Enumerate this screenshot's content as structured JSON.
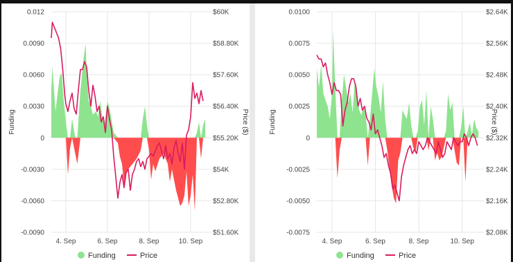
{
  "chart_data": [
    {
      "type": "area",
      "title": "",
      "xlabel": "",
      "ylabel": "Funding",
      "y2label": "Price ($)",
      "x_ticks": [
        "4. Sep",
        "6. Sep",
        "8. Sep",
        "10. Sep"
      ],
      "x_tick_days": [
        4,
        6,
        8,
        10
      ],
      "xlim": [
        3.3,
        11.0
      ],
      "ylim": [
        -0.009,
        0.012
      ],
      "y_ticks": [
        -0.009,
        -0.006,
        -0.003,
        0,
        0.003,
        0.006,
        0.009,
        0.012
      ],
      "y_tick_labels": [
        "-0.0090",
        "-0.0060",
        "-0.0030",
        "0",
        "0.0030",
        "0.0060",
        "0.0090",
        "0.012"
      ],
      "y2lim": [
        51.6,
        60
      ],
      "y2_ticks": [
        51.6,
        52.8,
        54,
        55.2,
        56.4,
        57.6,
        58.8,
        60
      ],
      "y2_tick_labels": [
        "$51.60K",
        "$52.80K",
        "$54K",
        "$55.20K",
        "$56.40K",
        "$57.60K",
        "$58.80K",
        "$60K"
      ],
      "grid": true,
      "legend": "bottom-center",
      "series": [
        {
          "name": "Funding",
          "axis": "left",
          "x": [
            3.3,
            3.35,
            3.5,
            3.7,
            3.8,
            3.9,
            4.0,
            4.1,
            4.2,
            4.3,
            4.45,
            4.55,
            4.7,
            4.8,
            4.85,
            4.95,
            5.0,
            5.1,
            5.2,
            5.3,
            5.45,
            5.55,
            5.65,
            5.75,
            5.85,
            6.0,
            6.1,
            6.3,
            6.5,
            6.6,
            6.7,
            6.8,
            6.9,
            7.0,
            7.2,
            7.4,
            7.6,
            7.7,
            7.8,
            7.9,
            8.0,
            8.1,
            8.2,
            8.3,
            8.5,
            8.7,
            8.9,
            9.0,
            9.1,
            9.3,
            9.5,
            9.6,
            9.7,
            9.8,
            9.9,
            10.0,
            10.1,
            10.2,
            10.3,
            10.4,
            10.5,
            10.6,
            10.7
          ],
          "y": [
            0.0045,
            0.0068,
            0.0025,
            0.0058,
            0.0062,
            0.0035,
            0.0015,
            -0.0035,
            -0.001,
            0.0018,
            -0.0015,
            -0.0025,
            0.0045,
            0.0065,
            0.0075,
            0.009,
            0.0062,
            0.0035,
            0.003,
            0.0022,
            0.0025,
            0.002,
            0.0035,
            0.002,
            0.0012,
            0.0035,
            0.0028,
            0.0005,
            -0.0005,
            -0.0018,
            -0.0025,
            -0.0045,
            -0.0035,
            -0.003,
            -0.0025,
            -0.002,
            -0.0012,
            0.0018,
            0.003,
            0.0012,
            -0.0012,
            -0.004,
            -0.0025,
            -0.0032,
            -0.002,
            -0.0015,
            -0.0025,
            -0.0042,
            -0.003,
            -0.005,
            -0.0065,
            -0.0062,
            -0.0055,
            -0.0032,
            -0.0065,
            -0.0055,
            -0.0035,
            -0.007,
            0.0005,
            0.0015,
            -0.002,
            0.0012,
            0.0018
          ]
        },
        {
          "name": "Price",
          "axis": "right",
          "x": [
            3.3,
            3.35,
            3.45,
            3.55,
            3.65,
            3.75,
            3.85,
            3.95,
            4.0,
            4.1,
            4.2,
            4.3,
            4.4,
            4.5,
            4.6,
            4.7,
            4.8,
            4.9,
            5.0,
            5.1,
            5.2,
            5.3,
            5.4,
            5.5,
            5.6,
            5.7,
            5.8,
            5.9,
            6.0,
            6.1,
            6.2,
            6.3,
            6.4,
            6.5,
            6.6,
            6.7,
            6.8,
            6.9,
            7.0,
            7.1,
            7.2,
            7.3,
            7.4,
            7.5,
            7.6,
            7.7,
            7.8,
            7.9,
            8.0,
            8.1,
            8.2,
            8.3,
            8.4,
            8.5,
            8.6,
            8.7,
            8.8,
            8.9,
            9.0,
            9.1,
            9.2,
            9.3,
            9.4,
            9.5,
            9.6,
            9.7,
            9.8,
            9.9,
            10.0,
            10.1,
            10.2,
            10.3,
            10.4,
            10.5,
            10.6
          ],
          "y": [
            59.0,
            59.6,
            59.4,
            59.2,
            59.0,
            58.6,
            57.8,
            56.8,
            56.5,
            56.2,
            56.6,
            56.9,
            56.3,
            56.1,
            57.0,
            57.8,
            57.8,
            58.1,
            57.9,
            57.0,
            56.4,
            57.2,
            56.8,
            56.2,
            56.4,
            55.8,
            56.0,
            55.4,
            56.4,
            55.9,
            55.5,
            54.5,
            53.7,
            52.9,
            53.5,
            53.8,
            53.3,
            53.9,
            54.0,
            53.2,
            53.8,
            54.0,
            54.3,
            54.4,
            54.1,
            54.3,
            54.0,
            54.4,
            54.5,
            54.6,
            54.5,
            54.7,
            54.9,
            55.0,
            54.7,
            54.4,
            54.9,
            54.4,
            54.6,
            54.2,
            54.8,
            55.1,
            54.6,
            54.3,
            55.0,
            54.0,
            55.3,
            55.5,
            56.0,
            57.3,
            56.7,
            56.9,
            56.5,
            57.0,
            56.6
          ]
        }
      ]
    },
    {
      "type": "area",
      "title": "",
      "xlabel": "",
      "ylabel": "Funding",
      "y2label": "Price ($)",
      "x_ticks": [
        "4. Sep",
        "6. Sep",
        "8. Sep",
        "10. Sep"
      ],
      "x_tick_days": [
        4,
        6,
        8,
        10
      ],
      "xlim": [
        3.3,
        11.0
      ],
      "ylim": [
        -0.0075,
        0.01
      ],
      "y_ticks": [
        -0.0075,
        -0.005,
        -0.0025,
        0,
        0.0025,
        0.005,
        0.0075,
        0.01
      ],
      "y_tick_labels": [
        "-0.0075",
        "-0.0050",
        "-0.0025",
        "0",
        "0.0025",
        "0.0050",
        "0.0075",
        "0.0100"
      ],
      "y2lim": [
        2.08,
        2.64
      ],
      "y2_ticks": [
        2.08,
        2.16,
        2.24,
        2.32,
        2.4,
        2.48,
        2.56,
        2.64
      ],
      "y2_tick_labels": [
        "$2.08K",
        "$2.16K",
        "$2.24K",
        "$2.32K",
        "$2.40K",
        "$2.48K",
        "$2.56K",
        "$2.64K"
      ],
      "grid": true,
      "legend": "bottom-center",
      "series": [
        {
          "name": "Funding",
          "axis": "left",
          "x": [
            3.3,
            3.4,
            3.5,
            3.6,
            3.7,
            3.8,
            3.9,
            4.0,
            4.05,
            4.15,
            4.25,
            4.35,
            4.45,
            4.55,
            4.65,
            4.75,
            4.85,
            4.95,
            5.05,
            5.15,
            5.25,
            5.35,
            5.45,
            5.55,
            5.65,
            5.75,
            5.85,
            5.95,
            6.05,
            6.15,
            6.25,
            6.35,
            6.45,
            6.55,
            6.65,
            6.75,
            6.85,
            6.95,
            7.05,
            7.15,
            7.25,
            7.35,
            7.45,
            7.55,
            7.65,
            7.75,
            7.85,
            7.95,
            8.05,
            8.15,
            8.25,
            8.35,
            8.45,
            8.55,
            8.65,
            8.75,
            8.85,
            8.95,
            9.05,
            9.15,
            9.25,
            9.35,
            9.45,
            9.55,
            9.65,
            9.75,
            9.85,
            9.95,
            10.05,
            10.15,
            10.25,
            10.35,
            10.45,
            10.55,
            10.65,
            10.75
          ],
          "y": [
            0.0055,
            0.004,
            0.0058,
            0.0035,
            0.003,
            0.0025,
            0.0015,
            0.0035,
            0.0085,
            0.004,
            -0.0032,
            -0.001,
            0.003,
            0.005,
            0.004,
            0.0028,
            0.0035,
            0.002,
            0.0045,
            0.0038,
            0.0022,
            0.0018,
            0.0025,
            0.0018,
            -0.0022,
            0.0015,
            0.0035,
            0.0055,
            0.004,
            0.0032,
            0.002,
            0.0045,
            0.0015,
            -0.001,
            -0.0025,
            -0.0038,
            -0.0048,
            -0.0052,
            -0.0018,
            -0.0012,
            0.0022,
            0.0018,
            0.0015,
            0.0028,
            0.001,
            -0.0008,
            -0.0012,
            0.0005,
            0.0025,
            0.003,
            0.001,
            0.0038,
            -0.001,
            0.0025,
            0.0015,
            -0.0018,
            -0.0012,
            -0.0018,
            -0.0015,
            -0.0008,
            0.0005,
            0.0035,
            0.0022,
            0.0028,
            -0.001,
            -0.002,
            -0.0022,
            0.0008,
            0.0025,
            -0.0035,
            0.0005,
            0.0012,
            0.0002,
            0.0015,
            0.0008,
            0.0005
          ]
        },
        {
          "name": "Price",
          "axis": "right",
          "x": [
            3.3,
            3.4,
            3.5,
            3.6,
            3.7,
            3.8,
            3.9,
            4.0,
            4.1,
            4.2,
            4.3,
            4.4,
            4.5,
            4.6,
            4.7,
            4.8,
            4.9,
            5.0,
            5.1,
            5.2,
            5.3,
            5.4,
            5.5,
            5.6,
            5.7,
            5.8,
            5.9,
            6.0,
            6.1,
            6.2,
            6.3,
            6.4,
            6.5,
            6.6,
            6.7,
            6.8,
            6.9,
            7.0,
            7.1,
            7.2,
            7.3,
            7.4,
            7.5,
            7.6,
            7.7,
            7.8,
            7.9,
            8.0,
            8.1,
            8.2,
            8.3,
            8.4,
            8.5,
            8.6,
            8.7,
            8.8,
            8.9,
            9.0,
            9.1,
            9.2,
            9.3,
            9.4,
            9.5,
            9.6,
            9.7,
            9.8,
            9.9,
            10.0,
            10.1,
            10.2,
            10.3,
            10.4,
            10.5,
            10.6,
            10.7
          ],
          "y": [
            2.53,
            2.52,
            2.52,
            2.5,
            2.51,
            2.48,
            2.46,
            2.43,
            2.46,
            2.44,
            2.44,
            2.43,
            2.35,
            2.39,
            2.41,
            2.45,
            2.47,
            2.47,
            2.45,
            2.4,
            2.42,
            2.39,
            2.4,
            2.37,
            2.36,
            2.34,
            2.38,
            2.33,
            2.34,
            2.32,
            2.3,
            2.27,
            2.28,
            2.25,
            2.23,
            2.19,
            2.2,
            2.18,
            2.16,
            2.22,
            2.25,
            2.27,
            2.29,
            2.3,
            2.28,
            2.29,
            2.28,
            2.31,
            2.3,
            2.29,
            2.3,
            2.32,
            2.31,
            2.3,
            2.29,
            2.28,
            2.31,
            2.29,
            2.27,
            2.28,
            2.31,
            2.3,
            2.29,
            2.32,
            2.31,
            2.3,
            2.31,
            2.31,
            2.33,
            2.32,
            2.3,
            2.32,
            2.33,
            2.32,
            2.3
          ]
        }
      ]
    }
  ],
  "colors": {
    "funding_positive": "#8ee38f",
    "funding_negative": "#ff4d4d",
    "price_line": "#d81b60",
    "grid": "#e6e6e6"
  }
}
